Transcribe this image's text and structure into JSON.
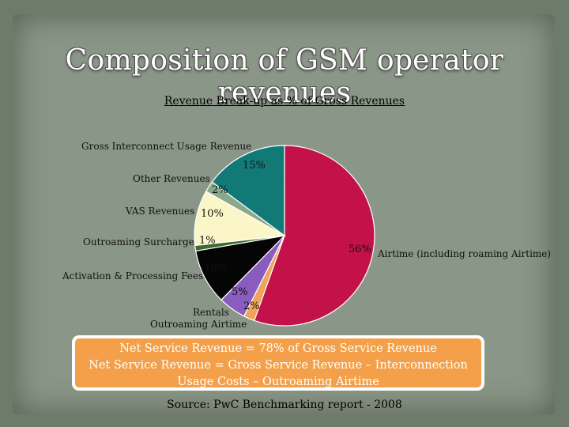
{
  "slide": {
    "title": "Composition of GSM operator revenues",
    "source": "Source: PwC Benchmarking report - 2008"
  },
  "chart_data": {
    "type": "pie",
    "title": "Revenue Break-up as % of Gross Revenues",
    "slices": [
      {
        "label": "Airtime (including roaming Airtime)",
        "value": 56,
        "value_label": "56%",
        "color": "#c3124a"
      },
      {
        "label": "Outroaming Airtime",
        "value": 2,
        "value_label": "2%",
        "color": "#f0a35a"
      },
      {
        "label": "Rentals",
        "value": 5,
        "value_label": "5%",
        "color": "#8a5cc0"
      },
      {
        "label": "Activation & Processing Fees",
        "value": 10,
        "value_label": "10%",
        "color": "#050505"
      },
      {
        "label": "Outroaming Surcharge",
        "value": 1,
        "value_label": "1%",
        "color": "#3c6b2b"
      },
      {
        "label": "VAS Revenues",
        "value": 10,
        "value_label": "10%",
        "color": "#fbf6c8"
      },
      {
        "label": "Other Revenues",
        "value": 2,
        "value_label": "2%",
        "color": "#8aa88a"
      },
      {
        "label": "Gross Interconnect Usage Revenue",
        "value": 15,
        "value_label": "15%",
        "color": "#127a76"
      }
    ],
    "legend": "none"
  },
  "note": {
    "line1": "Net Service Revenue = 78% of Gross Service Revenue",
    "line2": "Net Service Revenue = Gross Service Revenue – Interconnection",
    "line3": "Usage Costs – Outroaming Airtime"
  }
}
